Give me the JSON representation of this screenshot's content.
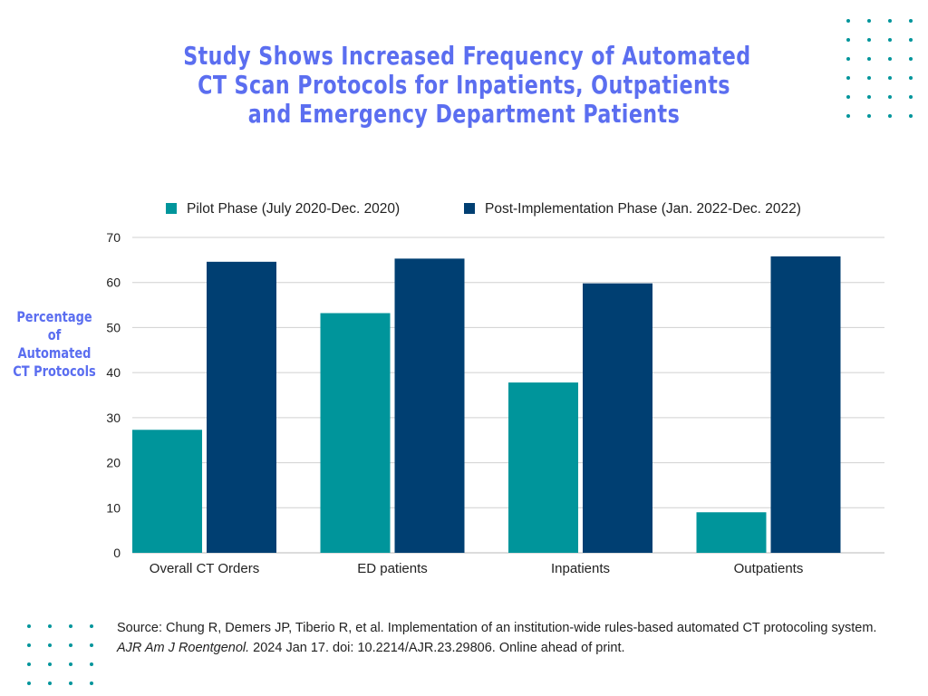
{
  "title_lines": [
    "Study Shows Increased Frequency of Automated",
    "CT Scan Protocols for Inpatients, Outpatients",
    "and Emergency Department Patients"
  ],
  "colors": {
    "title": "#5b6ef0",
    "pilot": "#00959b",
    "post": "#003f72",
    "grid": "#d0d0d0",
    "text": "#222222",
    "dots": "#00959b"
  },
  "chart_data": {
    "type": "bar",
    "categories": [
      "Overall CT Orders",
      "ED patients",
      "Inpatients",
      "Outpatients"
    ],
    "series": [
      {
        "name": "Pilot Phase (July 2020-Dec. 2020)",
        "values": [
          27.3,
          53.2,
          37.8,
          9.0
        ]
      },
      {
        "name": "Post-Implementation Phase (Jan. 2022-Dec. 2022)",
        "values": [
          64.6,
          65.3,
          59.8,
          65.8
        ]
      }
    ],
    "ylabel_lines": [
      "Percentage",
      "of",
      "Automated",
      "CT Protocols"
    ],
    "yticks": [
      0,
      10,
      20,
      30,
      40,
      50,
      60,
      70
    ],
    "ylim": [
      0,
      70
    ],
    "grid": true,
    "legend_position": "top"
  },
  "source": {
    "prefix": "Source: Chung R, Demers JP, Tiberio R, et al. Implementation of an institution-wide rules-based automated CT protocoling system. ",
    "journal": "AJR Am J Roentgenol.",
    "suffix": " 2024 Jan 17. doi: 10.2214/AJR.23.29806. Online ahead of print."
  }
}
